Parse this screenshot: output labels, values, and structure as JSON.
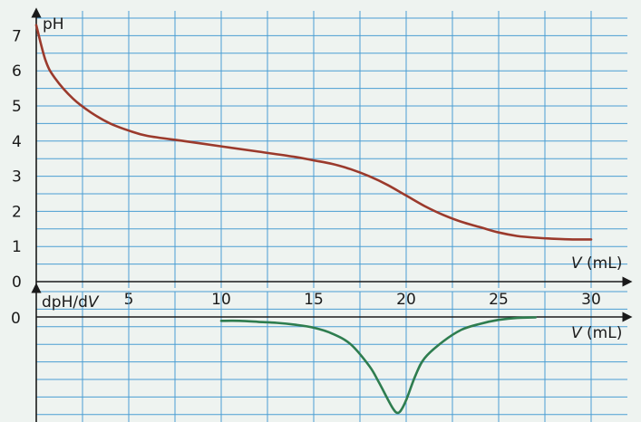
{
  "colors": {
    "background": "#eef3f0",
    "grid": "#4a9ed3",
    "ph_curve": "#9b3a2c",
    "derivative_curve": "#2e7d4f",
    "axis": "#1a1a1a"
  },
  "chart_data": [
    {
      "type": "line",
      "title": "",
      "ylabel": "pH",
      "xlabel_var": "V",
      "xlabel_unit": " (mL)",
      "xlim": [
        0,
        32
      ],
      "ylim": [
        0,
        7.5
      ],
      "grid": true,
      "x_ticks": [
        "5",
        "10",
        "15",
        "20",
        "25",
        "30"
      ],
      "x_tick_values": [
        5,
        10,
        15,
        20,
        25,
        30
      ],
      "y_ticks": [
        "0",
        "1",
        "2",
        "3",
        "4",
        "5",
        "6",
        "7"
      ],
      "y_tick_values": [
        0,
        1,
        2,
        3,
        4,
        5,
        6,
        7
      ],
      "series": [
        {
          "x": [
            0,
            0.5,
            1,
            2,
            3,
            4,
            5,
            6,
            8,
            10,
            12,
            14,
            15,
            16,
            17,
            18,
            19,
            20,
            21,
            22,
            23,
            24,
            25,
            26,
            27,
            28,
            29,
            30
          ],
          "y": [
            7.3,
            6.3,
            5.8,
            5.2,
            4.8,
            4.5,
            4.3,
            4.15,
            4.0,
            3.85,
            3.7,
            3.55,
            3.45,
            3.35,
            3.2,
            3.0,
            2.75,
            2.45,
            2.15,
            1.9,
            1.7,
            1.55,
            1.4,
            1.3,
            1.25,
            1.22,
            1.2,
            1.2
          ]
        }
      ]
    },
    {
      "type": "line",
      "title": "",
      "ylabel_prefix": "dpH/d",
      "ylabel_var": "V",
      "xlabel_var": "V",
      "xlabel_unit": " (mL)",
      "xlim": [
        0,
        32
      ],
      "grid": true,
      "y_ticks": [
        "0"
      ],
      "y_tick_values": [
        0
      ],
      "series": [
        {
          "x": [
            10,
            11,
            12,
            13,
            14,
            15,
            16,
            17,
            18,
            18.5,
            19,
            19.3,
            19.5,
            19.7,
            20,
            20.5,
            21,
            22,
            23,
            24,
            25,
            26,
            27
          ],
          "y": [
            -0.04,
            -0.04,
            -0.05,
            -0.06,
            -0.08,
            -0.11,
            -0.17,
            -0.28,
            -0.5,
            -0.66,
            -0.84,
            -0.94,
            -0.98,
            -0.96,
            -0.85,
            -0.6,
            -0.42,
            -0.25,
            -0.13,
            -0.07,
            -0.03,
            -0.01,
            -0.005
          ]
        }
      ]
    }
  ]
}
